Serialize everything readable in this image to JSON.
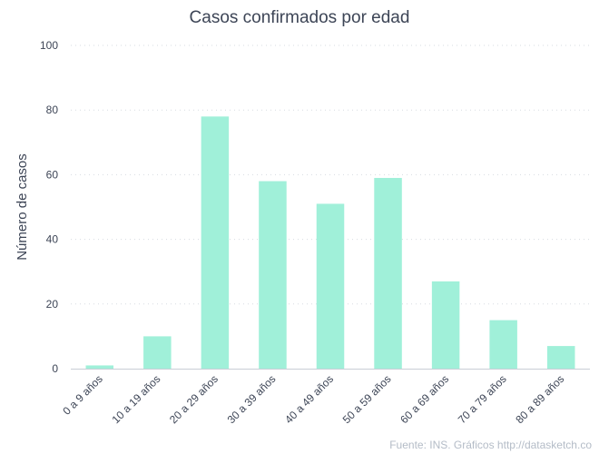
{
  "chart_data": {
    "type": "bar",
    "title": "Casos confirmados por edad",
    "xlabel": "",
    "ylabel": "Número de casos",
    "categories": [
      "0 a 9 años",
      "10 a 19 años",
      "20 a 29 años",
      "30 a 39 años",
      "40 a 49 años",
      "50 a 59 años",
      "60 a 69 años",
      "70 a 79 años",
      "80 a 89 años"
    ],
    "values": [
      1,
      10,
      78,
      58,
      51,
      59,
      27,
      15,
      7
    ],
    "ylim": [
      0,
      100
    ],
    "yticks": [
      0,
      20,
      40,
      60,
      80,
      100
    ],
    "grid": true,
    "legend": "none",
    "bar_color": "#a0f0d9",
    "caption": "Fuente: INS. Gráficos http://datasketch.co"
  }
}
